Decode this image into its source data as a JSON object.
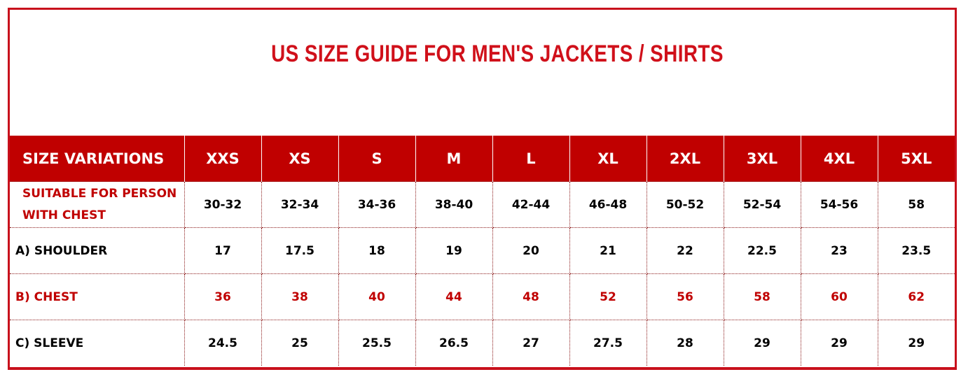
{
  "title": "US SIZE GUIDE FOR MEN'S JACKETS / SHIRTS",
  "colors": {
    "accent": "#c00000",
    "title": "#d0101a"
  },
  "table": {
    "header": [
      "SIZE VARIATIONS",
      "XXS",
      "XS",
      "S",
      "M",
      "L",
      "XL",
      "2XL",
      "3XL",
      "4XL",
      "5XL"
    ],
    "rows": [
      {
        "label": "SUITABLE FOR PERSON WITH CHEST",
        "values": [
          "30-32",
          "32-34",
          "34-36",
          "38-40",
          "42-44",
          "46-48",
          "50-52",
          "52-54",
          "54-56",
          "58"
        ]
      },
      {
        "label": "A) SHOULDER",
        "values": [
          "17",
          "17.5",
          "18",
          "19",
          "20",
          "21",
          "22",
          "22.5",
          "23",
          "23.5"
        ]
      },
      {
        "label": "B) CHEST",
        "values": [
          "36",
          "38",
          "40",
          "44",
          "48",
          "52",
          "56",
          "58",
          "60",
          "62"
        ]
      },
      {
        "label": "C) SLEEVE",
        "values": [
          "24.5",
          "25",
          "25.5",
          "26.5",
          "27",
          "27.5",
          "28",
          "29",
          "29",
          "29"
        ]
      }
    ]
  }
}
